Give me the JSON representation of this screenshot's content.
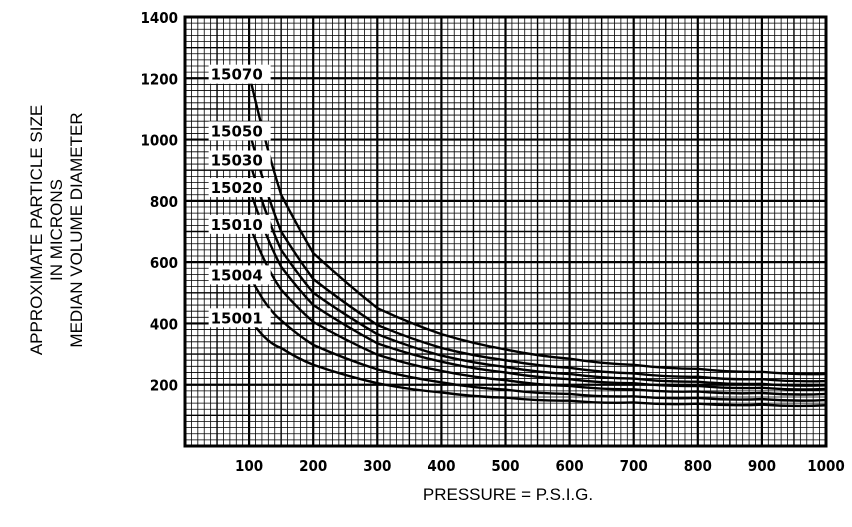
{
  "chart_data": {
    "type": "line",
    "title": "",
    "xlabel": "PRESSURE = P.S.I.G.",
    "ylabel_lines": [
      "APPROXIMATE PARTICLE SIZE",
      "IN MICRONS",
      "MEDIAN VOLUME DIAMETER"
    ],
    "xlim": [
      0,
      1000
    ],
    "ylim": [
      0,
      1400
    ],
    "x_ticks": [
      100,
      200,
      300,
      400,
      500,
      600,
      700,
      800,
      900,
      1000
    ],
    "x_tick_labels": [
      "100",
      "200",
      "300",
      "400",
      "500",
      "600",
      "700",
      "800",
      "900",
      "1000"
    ],
    "y_ticks": [
      200,
      400,
      600,
      800,
      1000,
      1200,
      1400
    ],
    "y_tick_labels": [
      "200",
      "400",
      "600",
      "800",
      "1000",
      "1200",
      "1400"
    ],
    "grid": true,
    "series": [
      {
        "name": "15070",
        "x": [
          100,
          150,
          200,
          300,
          400,
          500,
          600,
          700,
          800,
          900,
          1000
        ],
        "values": [
          1215,
          820,
          630,
          450,
          365,
          315,
          285,
          265,
          252,
          242,
          235
        ]
      },
      {
        "name": "15050",
        "x": [
          100,
          150,
          200,
          300,
          400,
          500,
          600,
          700,
          800,
          900,
          1000
        ],
        "values": [
          1030,
          700,
          545,
          395,
          320,
          280,
          255,
          237,
          226,
          218,
          212
        ]
      },
      {
        "name": "15030",
        "x": [
          100,
          150,
          200,
          300,
          400,
          500,
          600,
          700,
          800,
          900,
          1000
        ],
        "values": [
          935,
          640,
          500,
          365,
          295,
          258,
          235,
          220,
          210,
          203,
          198
        ]
      },
      {
        "name": "15020",
        "x": [
          100,
          150,
          200,
          300,
          400,
          500,
          600,
          700,
          800,
          900,
          1000
        ],
        "values": [
          845,
          585,
          460,
          335,
          275,
          240,
          218,
          205,
          196,
          190,
          186
        ]
      },
      {
        "name": "15010",
        "x": [
          100,
          150,
          200,
          300,
          400,
          500,
          600,
          700,
          800,
          900,
          1000
        ],
        "values": [
          725,
          510,
          405,
          298,
          245,
          215,
          196,
          185,
          178,
          173,
          170
        ]
      },
      {
        "name": "15004",
        "x": [
          100,
          150,
          200,
          300,
          400,
          500,
          600,
          700,
          800,
          900,
          1000
        ],
        "values": [
          560,
          410,
          330,
          250,
          208,
          184,
          170,
          162,
          157,
          153,
          150
        ]
      },
      {
        "name": "15001",
        "x": [
          100,
          150,
          200,
          300,
          400,
          500,
          600,
          700,
          800,
          900,
          1000
        ],
        "values": [
          420,
          320,
          265,
          205,
          175,
          158,
          148,
          142,
          138,
          135,
          133
        ]
      }
    ]
  }
}
